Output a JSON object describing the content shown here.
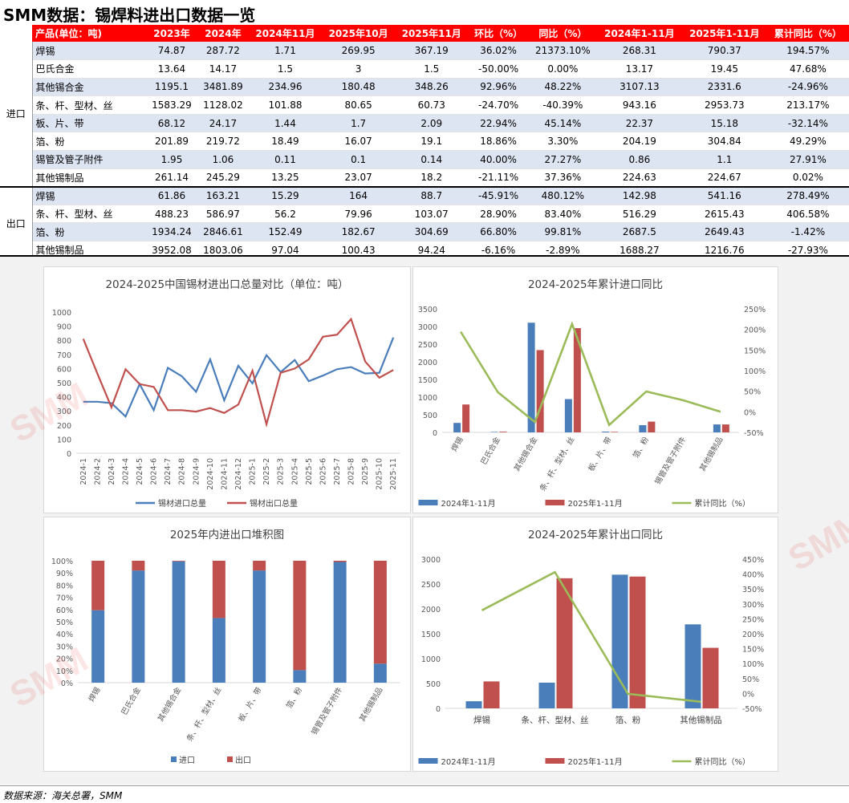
{
  "title": "SMM数据：锡焊料进出口数据一览",
  "footer": "数据来源：海关总署，SMM",
  "watermark": "SMM",
  "colors": {
    "header_red": "#ff0000",
    "alt_row": "#dde5f3",
    "blue": "#4a7ebb",
    "red": "#c0504d",
    "green": "#9bbb59"
  },
  "table": {
    "headers": [
      "产品(单位：吨)",
      "2023年",
      "2024年",
      "2024年11月",
      "2025年10月",
      "2025年11月",
      "环比（%）",
      "同比（%）",
      "2024年1-11月",
      "2025年1-11月",
      "累计同比（%）"
    ],
    "groups": [
      {
        "label": "进口",
        "rows": [
          [
            "焊锡",
            "74.87",
            "287.72",
            "1.71",
            "269.95",
            "367.19",
            "36.02%",
            "21373.10%",
            "268.31",
            "790.37",
            "194.57%"
          ],
          [
            "巴氏合金",
            "13.64",
            "14.17",
            "1.5",
            "3",
            "1.5",
            "-50.00%",
            "0.00%",
            "13.17",
            "19.45",
            "47.68%"
          ],
          [
            "其他锡合金",
            "1195.1",
            "3481.89",
            "234.96",
            "180.48",
            "348.26",
            "92.96%",
            "48.22%",
            "3107.13",
            "2331.6",
            "-24.96%"
          ],
          [
            "条、杆、型材、丝",
            "1583.29",
            "1128.02",
            "101.88",
            "80.65",
            "60.73",
            "-24.70%",
            "-40.39%",
            "943.16",
            "2953.73",
            "213.17%"
          ],
          [
            "板、片、带",
            "68.12",
            "24.17",
            "1.44",
            "1.7",
            "2.09",
            "22.94%",
            "45.14%",
            "22.37",
            "15.18",
            "-32.14%"
          ],
          [
            "箔、粉",
            "201.89",
            "219.72",
            "18.49",
            "16.07",
            "19.1",
            "18.86%",
            "3.30%",
            "204.19",
            "304.84",
            "49.29%"
          ],
          [
            "锡管及管子附件",
            "1.95",
            "1.06",
            "0.11",
            "0.1",
            "0.14",
            "40.00%",
            "27.27%",
            "0.86",
            "1.1",
            "27.91%"
          ],
          [
            "其他锡制品",
            "261.14",
            "245.29",
            "13.25",
            "23.07",
            "18.2",
            "-21.11%",
            "37.36%",
            "224.63",
            "224.67",
            "0.02%"
          ]
        ]
      },
      {
        "label": "出口",
        "rows": [
          [
            "焊锡",
            "61.86",
            "163.21",
            "15.29",
            "164",
            "88.7",
            "-45.91%",
            "480.12%",
            "142.98",
            "541.16",
            "278.49%"
          ],
          [
            "条、杆、型材、丝",
            "488.23",
            "586.97",
            "56.2",
            "79.96",
            "103.07",
            "28.90%",
            "83.40%",
            "516.29",
            "2615.43",
            "406.58%"
          ],
          [
            "箔、粉",
            "1934.24",
            "2846.61",
            "152.49",
            "182.67",
            "304.69",
            "66.80%",
            "99.81%",
            "2687.5",
            "2649.43",
            "-1.42%"
          ],
          [
            "其他锡制品",
            "3952.08",
            "1803.06",
            "97.04",
            "100.43",
            "94.24",
            "-6.16%",
            "-2.89%",
            "1688.27",
            "1216.76",
            "-27.93%"
          ]
        ]
      }
    ]
  },
  "chart_data": [
    {
      "type": "line",
      "title": "2024-2025中国锡材进出口总量对比（单位：吨）",
      "x": [
        "2024-1",
        "2024-2",
        "2024-3",
        "2024-4",
        "2024-5",
        "2024-6",
        "2024-7",
        "2024-8",
        "2024-9",
        "2024-10",
        "2024-11",
        "2024-12",
        "2025-1",
        "2025-2",
        "2025-3",
        "2025-4",
        "2025-5",
        "2025-6",
        "2025-7",
        "2025-8",
        "2025-9",
        "2025-10",
        "2025-11"
      ],
      "ylim": [
        0,
        1000
      ],
      "yticks": [
        0,
        100,
        200,
        300,
        400,
        500,
        600,
        700,
        800,
        900,
        1000
      ],
      "series": [
        {
          "name": "锡材进口总量",
          "color": "#4a7ebb",
          "values": [
            365,
            365,
            355,
            260,
            490,
            305,
            605,
            545,
            435,
            665,
            375,
            620,
            495,
            695,
            575,
            660,
            510,
            550,
            595,
            610,
            565,
            570,
            820
          ]
        },
        {
          "name": "锡材出口总量",
          "color": "#c0504d",
          "values": [
            810,
            565,
            325,
            595,
            490,
            470,
            305,
            305,
            295,
            320,
            285,
            345,
            585,
            205,
            570,
            600,
            665,
            825,
            840,
            950,
            650,
            535,
            590
          ]
        }
      ]
    },
    {
      "type": "bar",
      "title": "2024-2025年累计进口同比",
      "categories": [
        "焊锡",
        "巴氏合金",
        "其他锡合金",
        "条、杆、型材、丝",
        "板、片、带",
        "箔、粉",
        "锡管及管子附件",
        "其他锡制品"
      ],
      "ylim": [
        0,
        3500
      ],
      "yticks": [
        0,
        500,
        1000,
        1500,
        2000,
        2500,
        3000,
        3500
      ],
      "y2lim": [
        -50,
        250
      ],
      "y2ticks": [
        "-50%",
        "0%",
        "50%",
        "100%",
        "150%",
        "200%",
        "250%"
      ],
      "series": [
        {
          "name": "2024年1-11月",
          "color": "#4a7ebb",
          "values": [
            268.31,
            13.17,
            3107.13,
            943.16,
            22.37,
            204.19,
            0.86,
            224.63
          ]
        },
        {
          "name": "2025年1-11月",
          "color": "#c0504d",
          "values": [
            790.37,
            19.45,
            2331.6,
            2953.73,
            15.18,
            304.84,
            1.1,
            224.67
          ]
        },
        {
          "name": "累计同比（%）",
          "color": "#9bbb59",
          "axis": "y2",
          "values": [
            194.57,
            47.68,
            -24.96,
            213.17,
            -32.14,
            49.29,
            27.91,
            0.02
          ]
        }
      ]
    },
    {
      "type": "bar",
      "title": "2025年内进出口堆积图",
      "stacked": true,
      "categories": [
        "焊锡",
        "巴氏合金",
        "其他锡合金",
        "条、杆、型材、丝",
        "板、片、带",
        "箔、粉",
        "锡管及管子附件",
        "其他锡制品"
      ],
      "ylim": [
        0,
        100
      ],
      "yticks": [
        "0%",
        "10%",
        "20%",
        "30%",
        "40%",
        "50%",
        "60%",
        "70%",
        "80%",
        "90%",
        "100%"
      ],
      "series": [
        {
          "name": "进口",
          "color": "#4a7ebb",
          "values": [
            59.4,
            92,
            99.5,
            53.0,
            92,
            10.3,
            99,
            15.6
          ]
        },
        {
          "name": "出口",
          "color": "#c0504d",
          "values": [
            40.6,
            8,
            0.5,
            47.0,
            8,
            89.7,
            1,
            84.4
          ]
        }
      ]
    },
    {
      "type": "bar",
      "title": "2024-2025年累计出口同比",
      "categories": [
        "焊锡",
        "条、杆、型材、丝",
        "箔、粉",
        "其他锡制品"
      ],
      "ylim": [
        0,
        3000
      ],
      "yticks": [
        0,
        500,
        1000,
        1500,
        2000,
        2500,
        3000
      ],
      "y2lim": [
        -50,
        450
      ],
      "y2ticks": [
        "-50%",
        "0%",
        "50%",
        "100%",
        "150%",
        "200%",
        "250%",
        "300%",
        "350%",
        "400%",
        "450%"
      ],
      "series": [
        {
          "name": "2024年1-11月",
          "color": "#4a7ebb",
          "values": [
            142.98,
            516.29,
            2687.5,
            1688.27
          ]
        },
        {
          "name": "2025年1-11月",
          "color": "#c0504d",
          "values": [
            541.16,
            2615.43,
            2649.43,
            1216.76
          ]
        },
        {
          "name": "累计同比（%）",
          "color": "#9bbb59",
          "axis": "y2",
          "values": [
            278.49,
            406.58,
            -1.42,
            -27.93
          ]
        }
      ]
    }
  ]
}
